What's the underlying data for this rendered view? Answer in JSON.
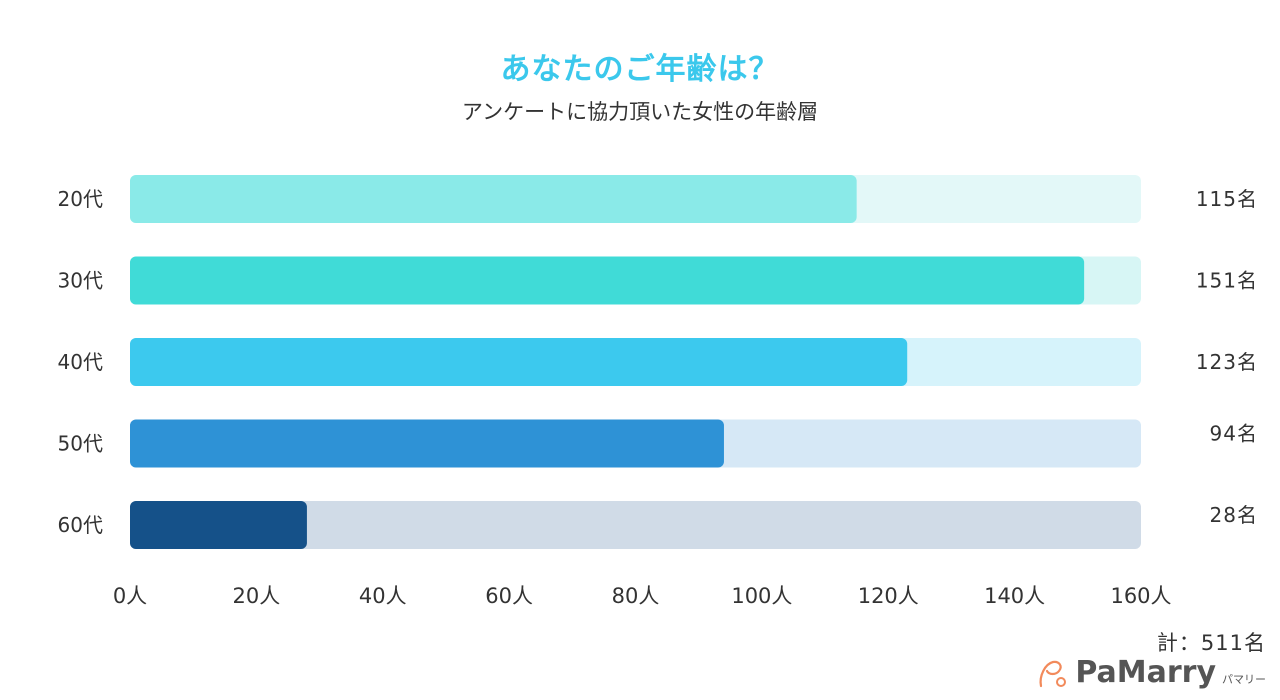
{
  "chart_data": {
    "type": "bar",
    "orientation": "horizontal",
    "title": "あなたのご年齢は？",
    "subtitle": "アンケートに協力頂いた女性の年齢層",
    "categories": [
      "20代",
      "30代",
      "40代",
      "50代",
      "60代"
    ],
    "values": [
      115,
      151,
      123,
      94,
      28
    ],
    "value_labels": [
      "115名",
      "151名",
      "123名",
      "94名",
      "28名"
    ],
    "bar_colors": [
      "#8aeae8",
      "#40dbd7",
      "#3cc9ee",
      "#2e92d6",
      "#155189"
    ],
    "track_colors": [
      "#e3f8f8",
      "#d7f6f5",
      "#d6f3fb",
      "#d6e8f6",
      "#d0dbe7"
    ],
    "xlim": [
      0,
      160
    ],
    "xticks": [
      0,
      20,
      40,
      60,
      80,
      100,
      120,
      140,
      160
    ],
    "xtick_labels": [
      "0人",
      "20人",
      "40人",
      "60人",
      "80人",
      "100人",
      "120人",
      "140人",
      "160人"
    ],
    "xlabel": "",
    "ylabel": ""
  },
  "footer": {
    "total": "計：511名",
    "brand_name": "PaMarry",
    "brand_kana": "パマリー",
    "logo_icon": "pamarry-logo-icon"
  }
}
